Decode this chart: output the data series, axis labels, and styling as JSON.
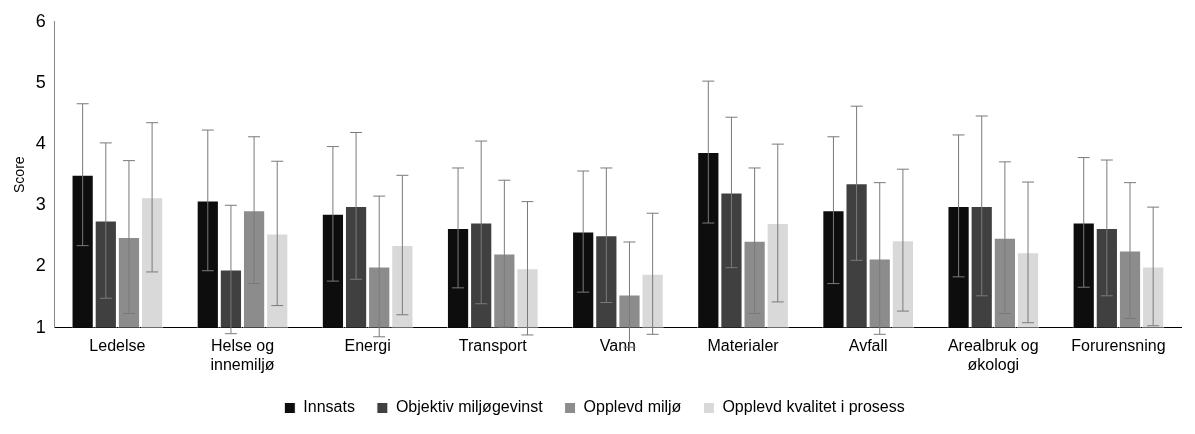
{
  "chart_data": {
    "type": "bar",
    "ylabel": "Score",
    "categories": [
      "Ledelse",
      "Helse og innemiljø",
      "Energi",
      "Transport",
      "Vann",
      "Materialer",
      "Avfall",
      "Arealbruk og økologi",
      "Forurensning"
    ],
    "series": [
      {
        "name": "Innsats",
        "color": "#0d0d0d",
        "values": [
          3.5,
          3.08,
          2.86,
          2.63,
          2.57,
          3.87,
          2.92,
          2.99,
          2.72
        ],
        "errors": [
          1.16,
          1.15,
          1.1,
          0.98,
          0.99,
          1.16,
          1.2,
          1.16,
          1.06
        ]
      },
      {
        "name": "Objektiv miljøgevinst",
        "color": "#404040",
        "values": [
          2.75,
          1.95,
          2.99,
          2.72,
          2.51,
          3.21,
          3.36,
          2.99,
          2.63
        ],
        "errors": [
          1.27,
          1.05,
          1.2,
          1.33,
          1.1,
          1.23,
          1.26,
          1.47,
          1.11
        ]
      },
      {
        "name": "Opplevd miljø",
        "color": "#8c8c8c",
        "values": [
          2.48,
          2.92,
          2.0,
          2.21,
          1.54,
          2.42,
          2.13,
          2.47,
          2.26
        ],
        "errors": [
          1.25,
          1.2,
          1.15,
          1.2,
          0.86,
          1.19,
          1.24,
          1.24,
          1.11
        ]
      },
      {
        "name": "Opplevd kvalitet i prosess",
        "color": "#d9d9d9",
        "values": [
          3.13,
          2.54,
          2.35,
          1.97,
          1.88,
          2.71,
          2.43,
          2.23,
          2.0
        ],
        "errors": [
          1.22,
          1.18,
          1.14,
          1.09,
          0.99,
          1.29,
          1.16,
          1.15,
          0.97
        ]
      }
    ],
    "ylim": [
      1,
      6
    ],
    "yticks": [
      1,
      2,
      3,
      4,
      5,
      6
    ],
    "grid": false,
    "legend": "bottom"
  }
}
